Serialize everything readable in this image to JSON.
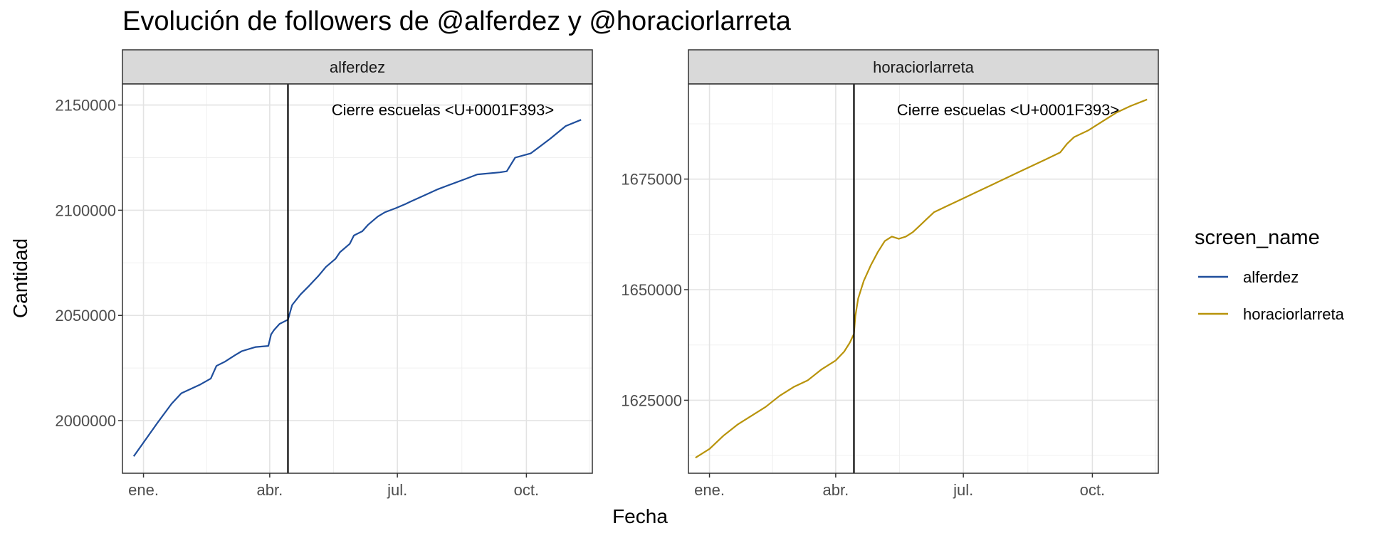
{
  "chart_data": {
    "type": "line",
    "title": "Evolución de followers de @alferdez y @horaciorlarreta",
    "xlabel": "Fecha",
    "ylabel": "Cantidad",
    "x_tick_labels": [
      "ene.",
      "abr.",
      "jul.",
      "oct."
    ],
    "x_tick_days": [
      0,
      90,
      181,
      273
    ],
    "grid": true,
    "legend": {
      "title": "screen_name",
      "placement": "right",
      "entries": [
        {
          "label": "alferdez",
          "color": "#1f4e9c"
        },
        {
          "label": "horaciorlarreta",
          "color": "#b8930a"
        }
      ]
    },
    "panels": [
      {
        "strip": "alferdez",
        "color": "#1f4e9c",
        "ylim": [
          1975000,
          2160000
        ],
        "y_ticks": [
          2000000,
          2050000,
          2100000,
          2150000
        ],
        "y_tick_labels": [
          "2000000",
          "2050000",
          "2100000",
          "2150000"
        ],
        "vline_day": 103,
        "annotation": "Cierre escuelas <U+0001F393>",
        "series": {
          "name": "alferdez",
          "days": [
            -7,
            10,
            20,
            27,
            40,
            48,
            52,
            58,
            65,
            70,
            80,
            89,
            91,
            93,
            97,
            103,
            106,
            112,
            118,
            125,
            130,
            137,
            140,
            147,
            150,
            156,
            160,
            167,
            172,
            180,
            187,
            190,
            200,
            210,
            218,
            230,
            238,
            254,
            259,
            265,
            276,
            280,
            290,
            301,
            312
          ],
          "values": [
            1983000,
            1999000,
            2008000,
            2013000,
            2017000,
            2020000,
            2026000,
            2028000,
            2031000,
            2033000,
            2035000,
            2035500,
            2041000,
            2043000,
            2046000,
            2048000,
            2055000,
            2060000,
            2064000,
            2069000,
            2073000,
            2077000,
            2080000,
            2084000,
            2088000,
            2090000,
            2093000,
            2097000,
            2099000,
            2101000,
            2103000,
            2104000,
            2107000,
            2110000,
            2112000,
            2115000,
            2117000,
            2118000,
            2118500,
            2125000,
            2127000,
            2129000,
            2134000,
            2140000,
            2143000
          ]
        }
      },
      {
        "strip": "horaciorlarreta",
        "color": "#b8930a",
        "ylim": [
          1608500,
          1696500
        ],
        "y_ticks": [
          1625000,
          1650000,
          1675000
        ],
        "y_tick_labels": [
          "1625000",
          "1650000",
          "1675000"
        ],
        "vline_day": 103,
        "annotation": "Cierre escuelas <U+0001F393>",
        "series": {
          "name": "horaciorlarreta",
          "days": [
            -10,
            0,
            10,
            20,
            30,
            40,
            50,
            60,
            70,
            80,
            90,
            96,
            100,
            103,
            104,
            106,
            110,
            115,
            120,
            125,
            130,
            135,
            140,
            145,
            150,
            155,
            160,
            170,
            180,
            190,
            200,
            210,
            220,
            230,
            240,
            250,
            255,
            260,
            270,
            280,
            290,
            300,
            312
          ],
          "values": [
            1612000,
            1614000,
            1617000,
            1619500,
            1621500,
            1623500,
            1626000,
            1628000,
            1629500,
            1632000,
            1634000,
            1636000,
            1638000,
            1640000,
            1644000,
            1648000,
            1652000,
            1655500,
            1658500,
            1661000,
            1662000,
            1661500,
            1662000,
            1663000,
            1664500,
            1666000,
            1667500,
            1669000,
            1670500,
            1672000,
            1673500,
            1675000,
            1676500,
            1678000,
            1679500,
            1681000,
            1683000,
            1684500,
            1686000,
            1688000,
            1690000,
            1691500,
            1693000
          ]
        }
      }
    ]
  }
}
